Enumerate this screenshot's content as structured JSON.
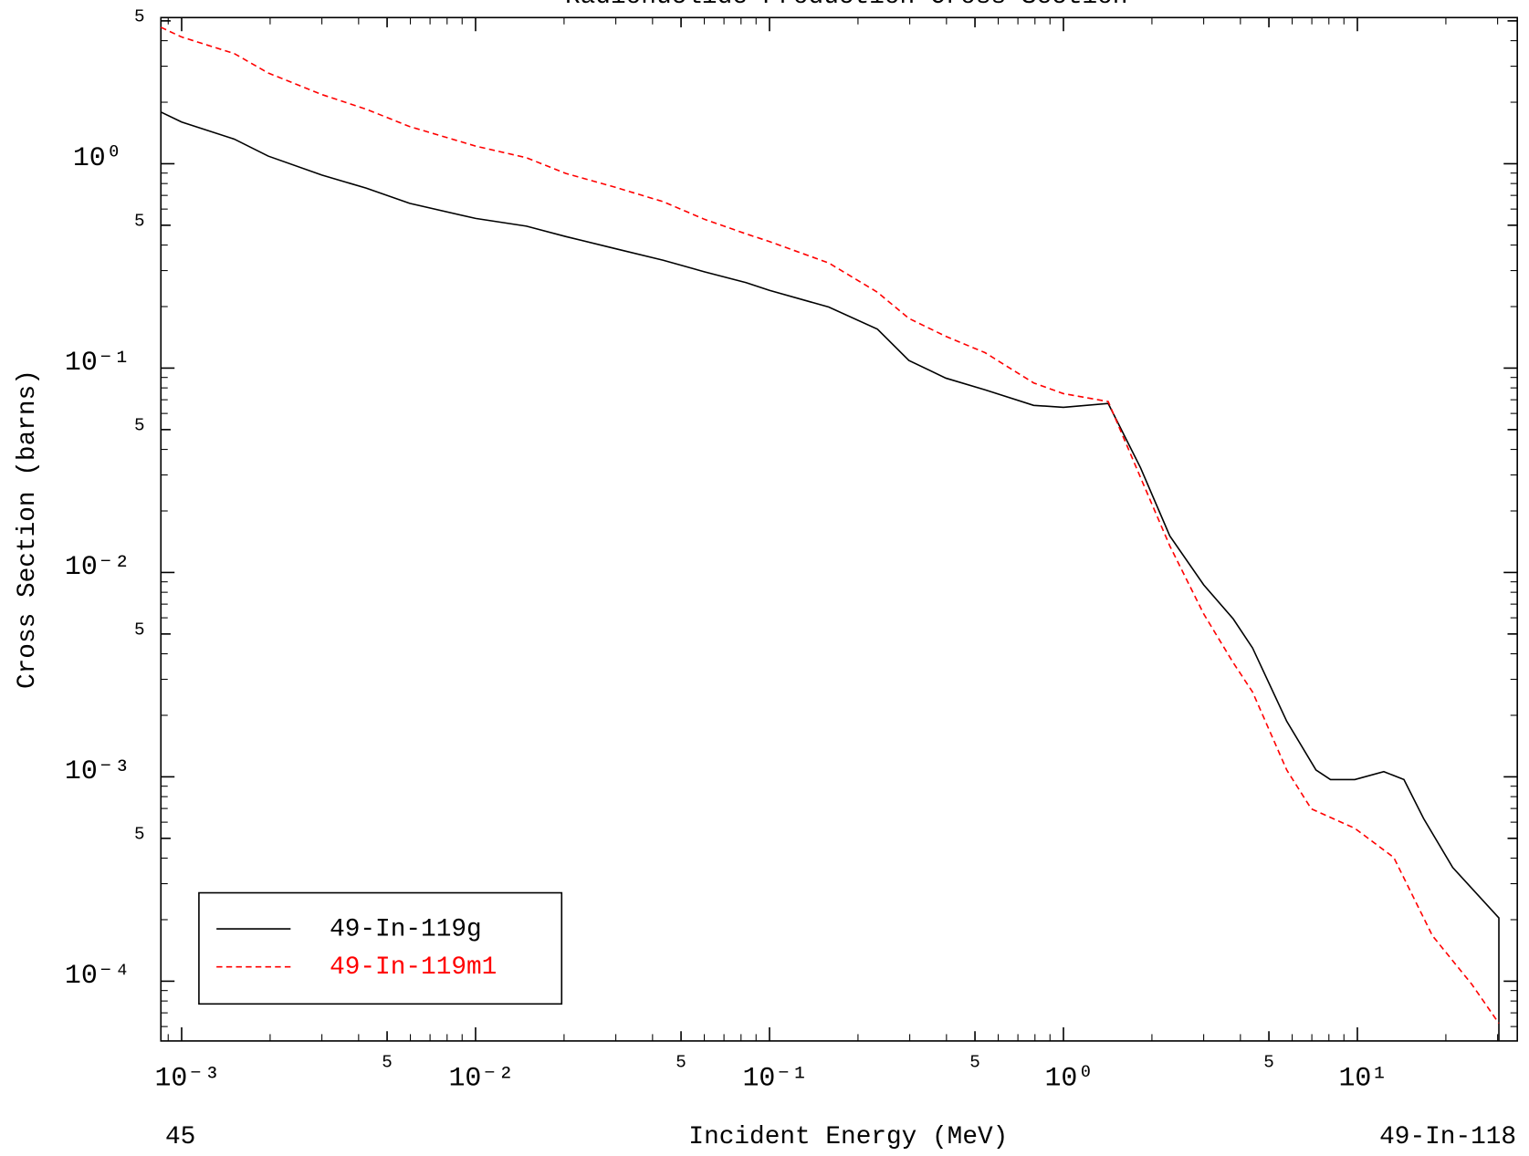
{
  "chart_data": {
    "type": "line",
    "title": "Radionuclide Production Cross Section",
    "x_label": "Incident Energy (MeV)",
    "y_label": "Cross Section (barns)",
    "footer_left": "45",
    "footer_right": "49-In-118",
    "xscale": "log",
    "yscale": "log",
    "xlim": [
      0.00085,
      35
    ],
    "ylim": [
      5.1e-05,
      5.19
    ],
    "xticks": [
      {
        "value": 0.001,
        "label": "10⁻³"
      },
      {
        "value": 0.005,
        "label": "5"
      },
      {
        "value": 0.01,
        "label": "10⁻²"
      },
      {
        "value": 0.05,
        "label": "5"
      },
      {
        "value": 0.1,
        "label": "10⁻¹"
      },
      {
        "value": 0.5,
        "label": "5"
      },
      {
        "value": 1,
        "label": "10⁰"
      },
      5,
      {
        "value": 10,
        "label": "10¹"
      }
    ],
    "yticks": [
      5,
      {
        "value": 1,
        "label": "10⁰"
      },
      {
        "value": 0.5,
        "label": "5"
      },
      {
        "value": 0.1,
        "label": "10⁻¹"
      },
      {
        "value": 0.05,
        "label": "5"
      },
      {
        "value": 0.01,
        "label": "10⁻²"
      },
      {
        "value": 0.005,
        "label": "5"
      },
      {
        "value": 0.001,
        "label": "10⁻³"
      },
      {
        "value": 0.0005,
        "label": "5"
      },
      {
        "value": 0.0001,
        "label": "10⁻⁴"
      }
    ],
    "legend": "lower left",
    "series": [
      {
        "name": "49-In-119g",
        "color": "#000000",
        "dash": "solid",
        "x": [
          0.00085,
          0.001,
          0.00151,
          0.00197,
          0.003,
          0.00424,
          0.00597,
          0.01,
          0.0149,
          0.0203,
          0.0297,
          0.0435,
          0.06,
          0.0832,
          0.1,
          0.159,
          0.233,
          0.298,
          0.398,
          0.541,
          0.792,
          1,
          1.42,
          1.83,
          2.3,
          3.0,
          3.78,
          4.4,
          5.75,
          7.23,
          8.1,
          9.8,
          12.3,
          14.4,
          16.8,
          21.1,
          30.3,
          30.3
        ],
        "values": [
          1.79,
          1.6,
          1.32,
          1.09,
          0.88,
          0.76,
          0.64,
          0.54,
          0.495,
          0.44,
          0.385,
          0.337,
          0.296,
          0.262,
          0.24,
          0.199,
          0.155,
          0.109,
          0.0893,
          0.0783,
          0.0657,
          0.0643,
          0.0671,
          0.0325,
          0.0151,
          0.0087,
          0.00593,
          0.00427,
          0.00187,
          0.00108,
          0.00097,
          0.00097,
          0.00106,
          0.00097,
          0.000625,
          0.00036,
          0.000204,
          5.1e-05
        ]
      },
      {
        "name": "49-In-119m1",
        "color": "#ff0000",
        "dash": "dashed",
        "x": [
          0.00085,
          0.001,
          0.00151,
          0.00197,
          0.003,
          0.00424,
          0.00597,
          0.01,
          0.0149,
          0.0203,
          0.0297,
          0.0435,
          0.06,
          0.0832,
          0.1,
          0.159,
          0.233,
          0.298,
          0.398,
          0.541,
          0.792,
          1,
          1.42,
          1.83,
          2.3,
          3.0,
          3.78,
          4.4,
          5.75,
          6.97,
          9.8,
          13.3,
          18.0,
          24.5,
          30.3
        ],
        "values": [
          4.65,
          4.17,
          3.46,
          2.78,
          2.18,
          1.85,
          1.52,
          1.22,
          1.07,
          0.896,
          0.769,
          0.652,
          0.535,
          0.454,
          0.416,
          0.327,
          0.235,
          0.175,
          0.143,
          0.119,
          0.0846,
          0.075,
          0.0686,
          0.0291,
          0.0135,
          0.00627,
          0.00362,
          0.0026,
          0.00108,
          0.000697,
          0.00056,
          0.000403,
          0.000167,
          9.66e-05,
          6.22e-05
        ]
      }
    ]
  }
}
